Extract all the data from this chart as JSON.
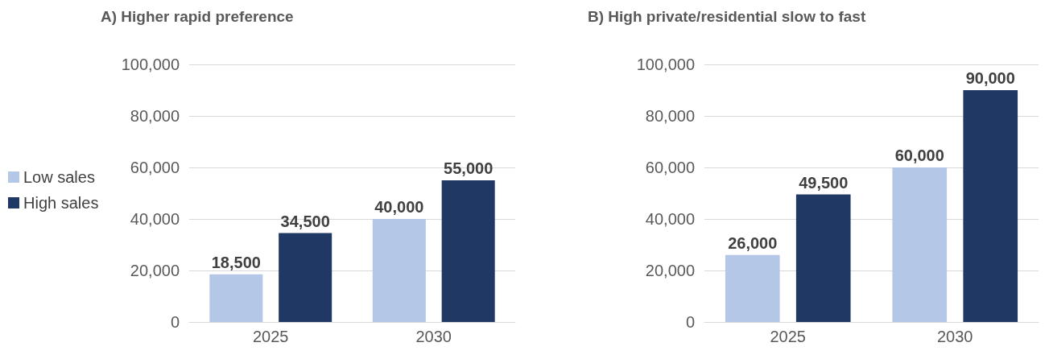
{
  "chart_data": [
    {
      "type": "bar",
      "title": "A) Higher rapid preference",
      "categories": [
        "2025",
        "2030"
      ],
      "series": [
        {
          "name": "Low sales",
          "color": "#b4c7e7",
          "values": [
            18500,
            40000
          ],
          "value_labels": [
            "18,500",
            "40,000"
          ]
        },
        {
          "name": "High sales",
          "color": "#203864",
          "values": [
            34500,
            55000
          ],
          "value_labels": [
            "34,500",
            "55,000"
          ]
        }
      ],
      "ylim": [
        0,
        100000
      ],
      "yticks": [
        0,
        {
          "value": 20000,
          "label": "20,000"
        },
        {
          "value": 40000,
          "label": "40,000"
        },
        {
          "value": 60000,
          "label": "60,000"
        },
        {
          "value": 80000,
          "label": "80,000"
        },
        {
          "value": 100000,
          "label": "100,000"
        }
      ],
      "grid": "y",
      "legend": "left"
    },
    {
      "type": "bar",
      "title": "B) High private/residential slow to fast",
      "categories": [
        "2025",
        "2030"
      ],
      "series": [
        {
          "color": "#b4c7e7",
          "values": [
            26000,
            60000
          ],
          "value_labels": [
            "26,000",
            "60,000"
          ]
        },
        {
          "color": "#203864",
          "values": [
            49500,
            90000
          ],
          "value_labels": [
            "49,500",
            "90,000"
          ]
        }
      ],
      "ylim": [
        0,
        100000
      ],
      "yticks": [
        0,
        {
          "value": 20000,
          "label": "20,000"
        },
        {
          "value": 40000,
          "label": "40,000"
        },
        {
          "value": 60000,
          "label": "60,000"
        },
        {
          "value": 80000,
          "label": "80,000"
        },
        {
          "value": 100000,
          "label": "100,000"
        }
      ],
      "grid": "y"
    }
  ]
}
